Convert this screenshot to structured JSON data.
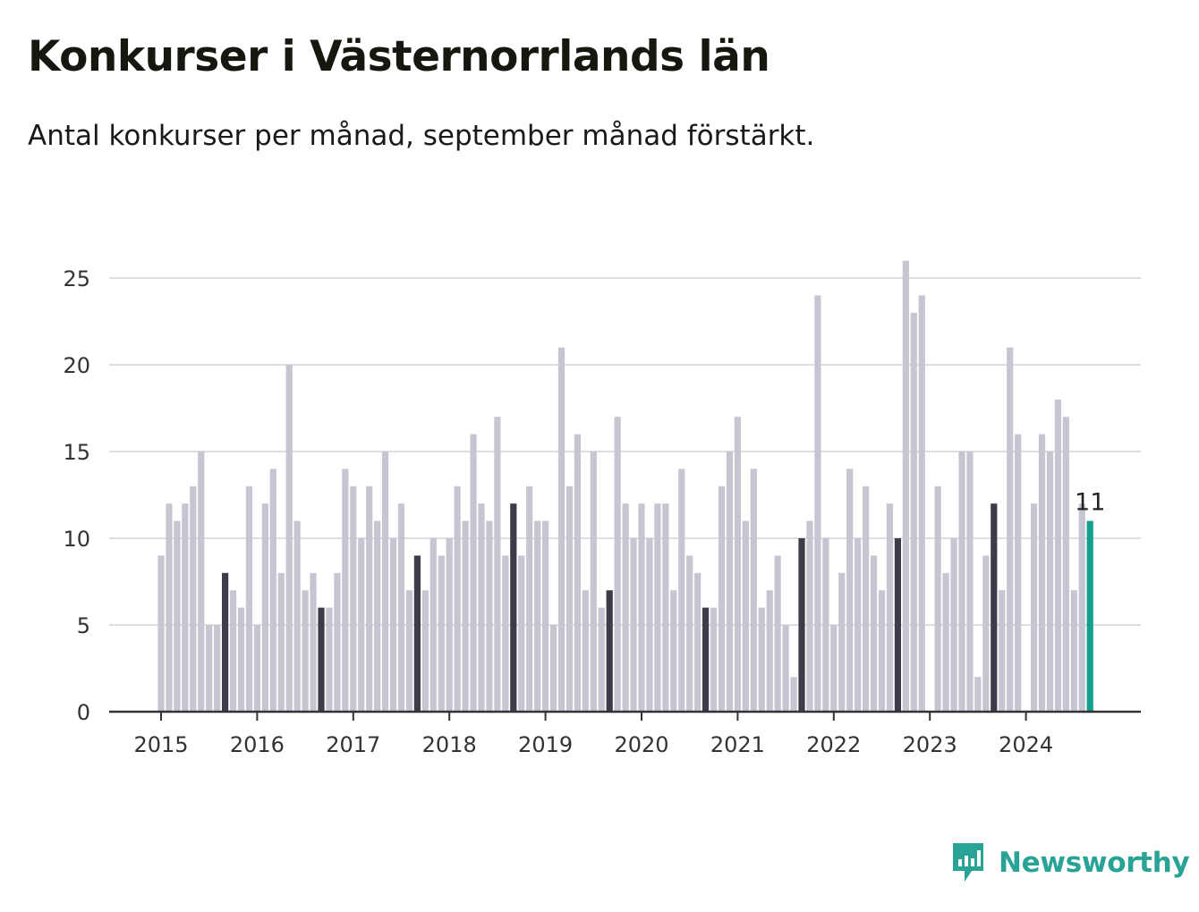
{
  "header": {
    "title": "Konkurser i Västernorrlands län",
    "subtitle": "Antal konkurser per månad, september månad förstärkt."
  },
  "brand": {
    "name": "Newsworthy",
    "icon": "bar-chart-speech-bubble-icon",
    "color": "#29a395"
  },
  "colors": {
    "regular": "#c6c5d2",
    "september": "#3d3c4b",
    "latest": "#14a08d",
    "grid": "#dddde2",
    "axis": "#333333"
  },
  "chart_data": {
    "type": "bar",
    "title": "Konkurser i Västernorrlands län",
    "subtitle": "Antal konkurser per månad, september månad förstärkt.",
    "xlabel": "",
    "ylabel": "",
    "ylim": [
      0,
      26
    ],
    "yticks": [
      0,
      5,
      10,
      15,
      20,
      25
    ],
    "xticks": [
      "2015",
      "2016",
      "2017",
      "2018",
      "2019",
      "2020",
      "2021",
      "2022",
      "2023",
      "2024"
    ],
    "grid": true,
    "highlight": "september",
    "latest_label": "11",
    "years": [
      {
        "year": "2015",
        "values": [
          9,
          12,
          11,
          12,
          13,
          15,
          5,
          5,
          8,
          7,
          6,
          13
        ]
      },
      {
        "year": "2016",
        "values": [
          5,
          12,
          14,
          8,
          20,
          11,
          7,
          8,
          6,
          6,
          8,
          14
        ]
      },
      {
        "year": "2017",
        "values": [
          13,
          10,
          13,
          11,
          15,
          10,
          12,
          7,
          9,
          7,
          10,
          9
        ]
      },
      {
        "year": "2018",
        "values": [
          10,
          13,
          11,
          16,
          12,
          11,
          17,
          9,
          12,
          9,
          13,
          11
        ]
      },
      {
        "year": "2019",
        "values": [
          11,
          5,
          21,
          13,
          16,
          7,
          15,
          6,
          7,
          17,
          12,
          10
        ]
      },
      {
        "year": "2020",
        "values": [
          12,
          10,
          12,
          12,
          7,
          14,
          9,
          8,
          6,
          6,
          13,
          15
        ]
      },
      {
        "year": "2021",
        "values": [
          17,
          11,
          14,
          6,
          7,
          9,
          5,
          2,
          10,
          11,
          24,
          10
        ]
      },
      {
        "year": "2022",
        "values": [
          5,
          8,
          14,
          10,
          13,
          9,
          7,
          12,
          10,
          26,
          23,
          24
        ]
      },
      {
        "year": "2023",
        "values": [
          0,
          13,
          8,
          10,
          15,
          15,
          2,
          9,
          12,
          7,
          21,
          16
        ]
      },
      {
        "year": "2024",
        "values": [
          0,
          12,
          16,
          15,
          18,
          17,
          7,
          12,
          11
        ]
      }
    ]
  }
}
